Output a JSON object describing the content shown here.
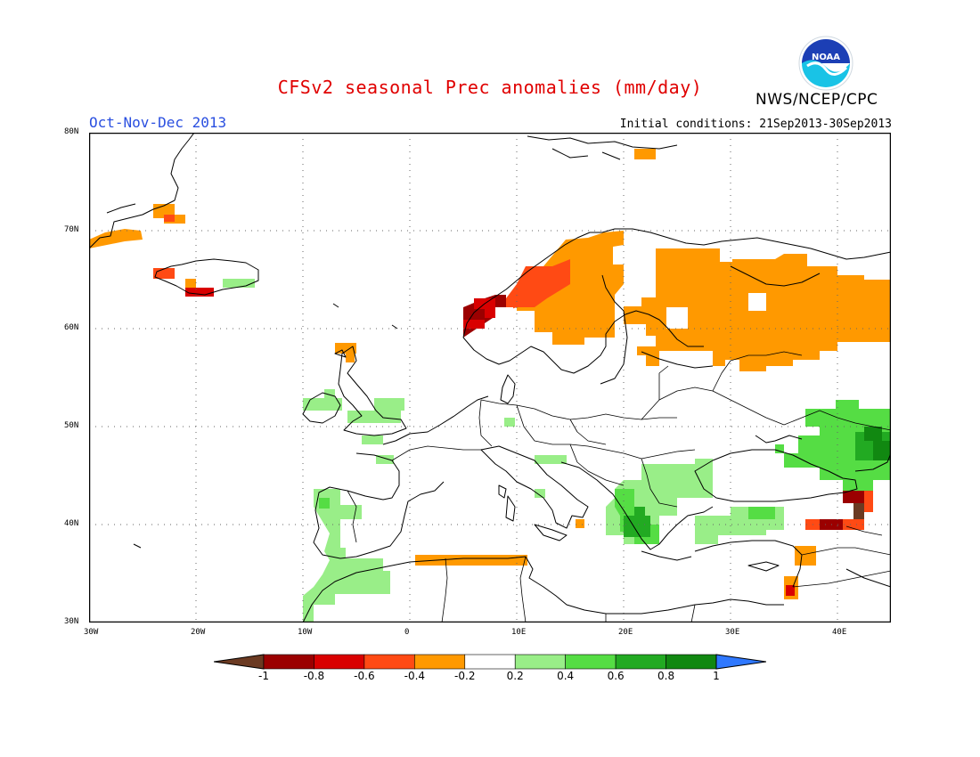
{
  "header": {
    "title": "CFSv2 seasonal Prec anomalies (mm/day)",
    "season": "Oct-Nov-Dec 2013",
    "initial_conditions": "Initial conditions: 21Sep2013-30Sep2013",
    "agency": "NWS/NCEP/CPC",
    "logo_text": "NOAA"
  },
  "map": {
    "lon_range": [
      -30,
      45
    ],
    "lat_range": [
      30,
      80
    ],
    "lon_ticks": [
      "30W",
      "20W",
      "10W",
      "0",
      "10E",
      "20E",
      "30E",
      "40E"
    ],
    "lat_ticks": [
      "30N",
      "40N",
      "50N",
      "60N",
      "70N",
      "80N"
    ],
    "grid": true,
    "anomaly_regions": [
      {
        "area": "Norway west coast",
        "class": "-1 to -0.8",
        "color": "#9b0000"
      },
      {
        "area": "Norway coast",
        "class": "-0.6 to -0.4",
        "color": "#ff4a14"
      },
      {
        "area": "Scandinavia / Sweden",
        "class": "-0.4 to -0.2",
        "color": "#ff9900"
      },
      {
        "area": "Western Russia",
        "class": "-0.4 to -0.2",
        "color": "#ff9900"
      },
      {
        "area": "Iceland",
        "class": "-0.6 to -0.4",
        "color": "#ff4a14"
      },
      {
        "area": "East Greenland",
        "class": "-0.4 to -0.2",
        "color": "#ff9900"
      },
      {
        "area": "Mediterranean south of Sardinia",
        "class": "-0.4 to -0.2",
        "color": "#ff9900"
      },
      {
        "area": "Caucasus",
        "class": "-1 to -0.8",
        "color": "#9b0000"
      },
      {
        "area": "Iberia / Morocco",
        "class": "0.2 to 0.4",
        "color": "#99ee88"
      },
      {
        "area": "Balkans / Greece",
        "class": "0.6 to 0.8",
        "color": "#22aa22"
      },
      {
        "area": "Southern Russia / Black Sea",
        "class": "0.4 to 0.6",
        "color": "#55dd44"
      },
      {
        "area": "Ireland / Britain",
        "class": "0.2 to 0.4",
        "color": "#99ee88"
      },
      {
        "area": "Turkey",
        "class": "0.4 to 0.6",
        "color": "#55dd44"
      }
    ]
  },
  "colorbar": {
    "labels": [
      "-1",
      "-0.8",
      "-0.6",
      "-0.4",
      "-0.2",
      "0.2",
      "0.4",
      "0.6",
      "0.8",
      "1"
    ],
    "colors": [
      "#6b3a22",
      "#9b0000",
      "#d90000",
      "#ff4a14",
      "#ff9900",
      "#ffffff",
      "#99ee88",
      "#55dd44",
      "#22aa22",
      "#118811",
      "#2f78ff"
    ]
  }
}
